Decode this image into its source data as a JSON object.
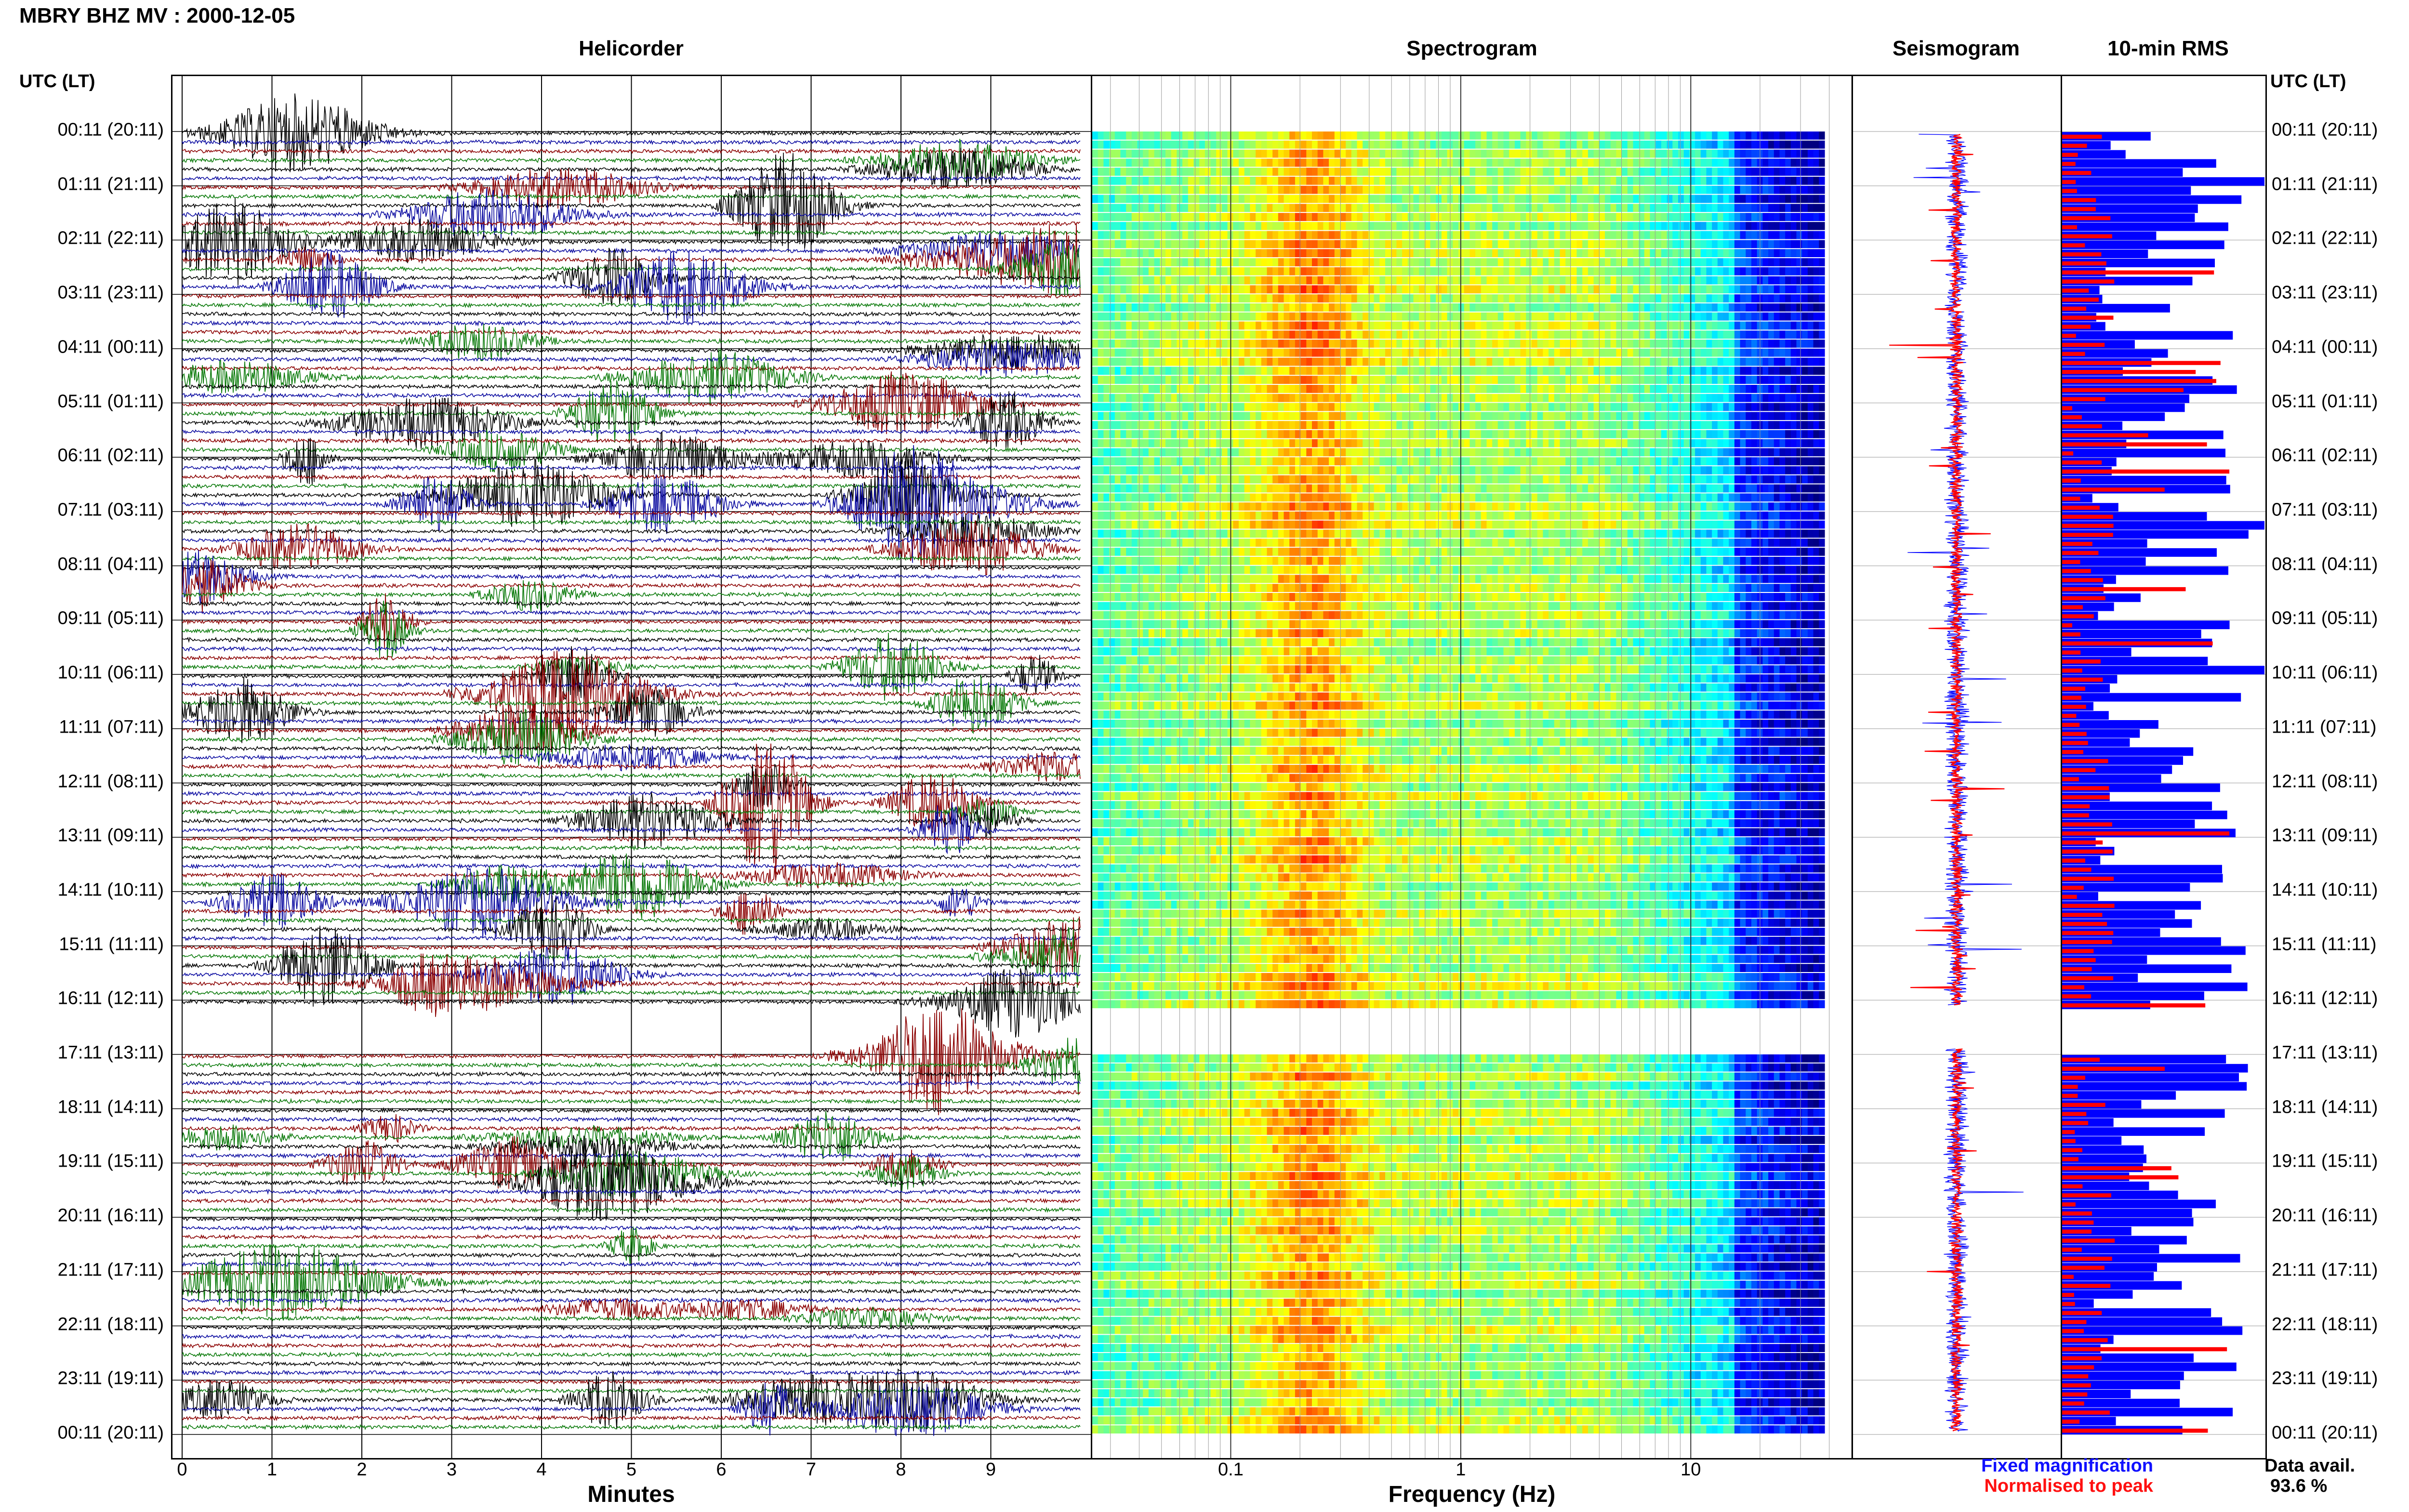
{
  "header": {
    "title": "MBRY BHZ MV : 2000-12-05",
    "time_label_left": "UTC (LT)",
    "time_label_right": "UTC (LT)"
  },
  "panels": {
    "helicorder": "Helicorder",
    "spectrogram": "Spectrogram",
    "seismogram": "Seismogram",
    "rms": "10-min RMS"
  },
  "axes": {
    "helicorder_xlabel": "Minutes",
    "spectrogram_xlabel": "Frequency (Hz)"
  },
  "legend": {
    "fixed": "Fixed magnification",
    "normalised": "Normalised to peak",
    "fixed_color": "#0000ff",
    "normalised_color": "#ff0000"
  },
  "data_availability": {
    "label": "Data avail.",
    "value": "93.6 %"
  },
  "colors": {
    "trace_cycle": [
      "#000000",
      "#0a0aa0",
      "#8b0000",
      "#0a7a0a"
    ]
  },
  "chart_data": [
    {
      "type": "line",
      "name": "helicorder",
      "y_tick_labels": [
        "00:11 (20:11)",
        "01:11 (21:11)",
        "02:11 (22:11)",
        "03:11 (23:11)",
        "04:11 (00:11)",
        "05:11 (01:11)",
        "06:11 (02:11)",
        "07:11 (03:11)",
        "08:11 (04:11)",
        "09:11 (05:11)",
        "10:11 (06:11)",
        "11:11 (07:11)",
        "12:11 (08:11)",
        "13:11 (09:11)",
        "14:11 (10:11)",
        "15:11 (11:11)",
        "16:11 (12:11)",
        "17:11 (13:11)",
        "18:11 (14:11)",
        "19:11 (15:11)",
        "20:11 (16:11)",
        "21:11 (17:11)",
        "22:11 (18:11)",
        "23:11 (19:11)",
        "00:11 (20:11)"
      ],
      "x_ticks": [
        0,
        1,
        2,
        3,
        4,
        5,
        6,
        7,
        8,
        9
      ],
      "xlim": [
        0,
        10
      ],
      "xlabel": "Minutes",
      "traces_per_hour": 6,
      "data_gap_hours": [
        16.1,
        16.9
      ],
      "grid": true
    },
    {
      "type": "heatmap",
      "name": "spectrogram",
      "xscale": "log",
      "x_ticks": [
        0.1,
        1,
        10
      ],
      "x_tick_labels": [
        "0.1",
        "1",
        "10"
      ],
      "xlim": [
        0.025,
        50
      ],
      "xlabel": "Frequency (Hz)",
      "colormap": "jet",
      "data_gap_hours": [
        16.1,
        16.9
      ]
    },
    {
      "type": "line",
      "name": "seismogram",
      "series": [
        {
          "name": "Fixed magnification",
          "color": "#0000ff"
        },
        {
          "name": "Normalised to peak",
          "color": "#ff0000"
        }
      ]
    },
    {
      "type": "bar",
      "name": "rms",
      "orientation": "horizontal",
      "series": [
        {
          "name": "Fixed magnification",
          "color": "#0000ff"
        },
        {
          "name": "Normalised to peak",
          "color": "#ff0000"
        }
      ],
      "bins": 144,
      "data_gap_hours": [
        16.1,
        16.9
      ]
    }
  ]
}
